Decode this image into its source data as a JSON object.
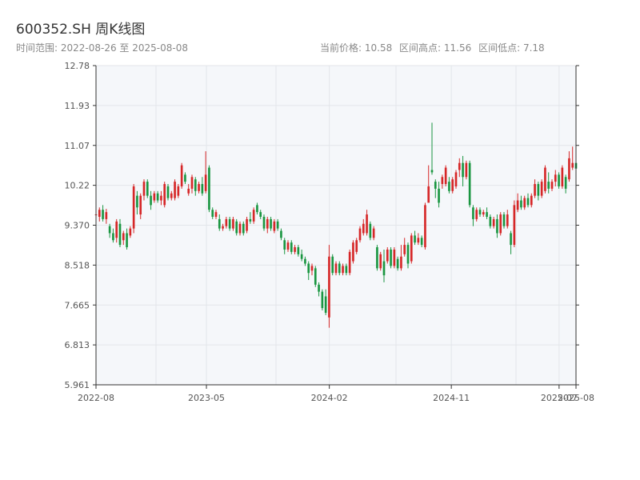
{
  "header": {
    "title": "600352.SH 周K线图",
    "range_label": "时间范围: 2022-08-26 至 2025-08-08",
    "current_price_label": "当前价格: 10.58",
    "high_label": "区间高点: 11.56",
    "low_label": "区间低点: 7.18"
  },
  "colors": {
    "up": "#d62728",
    "down": "#1a9641",
    "plot_bg": "#f5f7fa",
    "grid": "#e3e6ea",
    "axis": "#333333"
  },
  "chart_data": {
    "type": "candlestick",
    "y_ticks": [
      "12.78",
      "11.93",
      "11.07",
      "10.22",
      "9.370",
      "8.518",
      "7.665",
      "6.813",
      "5.961"
    ],
    "ylim": [
      5.961,
      12.78
    ],
    "x_ticks": [
      {
        "label": "2022-08",
        "date": "2022-08-26"
      },
      {
        "label": "2023-05",
        "date": "2023-05-01"
      },
      {
        "label": "2024-02",
        "date": "2024-02-01"
      },
      {
        "label": "2024-11",
        "date": "2024-11-01"
      },
      {
        "label": "2025-07",
        "date": "2025-07-01"
      },
      {
        "label": "2025-08",
        "date": "2025-08-08"
      }
    ],
    "xlim": [
      "2022-08-26",
      "2025-08-08"
    ],
    "candles": [
      {
        "o": 9.6,
        "h": 9.7,
        "l": 9.5,
        "c": 9.6
      },
      {
        "o": 9.55,
        "h": 9.75,
        "l": 9.45,
        "c": 9.7
      },
      {
        "o": 9.7,
        "h": 9.8,
        "l": 9.45,
        "c": 9.5
      },
      {
        "o": 9.5,
        "h": 9.72,
        "l": 9.4,
        "c": 9.65
      },
      {
        "o": 9.35,
        "h": 9.4,
        "l": 9.1,
        "c": 9.2
      },
      {
        "o": 9.2,
        "h": 9.3,
        "l": 9.0,
        "c": 9.05
      },
      {
        "o": 9.1,
        "h": 9.5,
        "l": 9.0,
        "c": 9.45
      },
      {
        "o": 9.4,
        "h": 9.5,
        "l": 8.9,
        "c": 8.95
      },
      {
        "o": 9.05,
        "h": 9.25,
        "l": 8.95,
        "c": 9.2
      },
      {
        "o": 9.2,
        "h": 9.3,
        "l": 8.85,
        "c": 8.9
      },
      {
        "o": 9.15,
        "h": 9.35,
        "l": 9.1,
        "c": 9.3
      },
      {
        "o": 9.3,
        "h": 10.25,
        "l": 9.2,
        "c": 10.2
      },
      {
        "o": 10.0,
        "h": 10.1,
        "l": 9.6,
        "c": 9.75
      },
      {
        "o": 9.6,
        "h": 10.05,
        "l": 9.5,
        "c": 10.0
      },
      {
        "o": 10.0,
        "h": 10.35,
        "l": 9.9,
        "c": 10.3
      },
      {
        "o": 10.3,
        "h": 10.35,
        "l": 9.95,
        "c": 10.0
      },
      {
        "o": 10.0,
        "h": 10.1,
        "l": 9.7,
        "c": 9.8
      },
      {
        "o": 9.9,
        "h": 10.1,
        "l": 9.85,
        "c": 10.05
      },
      {
        "o": 10.05,
        "h": 10.1,
        "l": 9.85,
        "c": 9.9
      },
      {
        "o": 9.9,
        "h": 10.1,
        "l": 9.8,
        "c": 10.0
      },
      {
        "o": 9.8,
        "h": 10.3,
        "l": 9.75,
        "c": 10.25
      },
      {
        "o": 10.2,
        "h": 10.25,
        "l": 9.9,
        "c": 9.95
      },
      {
        "o": 9.95,
        "h": 10.1,
        "l": 9.9,
        "c": 10.05
      },
      {
        "o": 9.95,
        "h": 10.35,
        "l": 9.9,
        "c": 10.3
      },
      {
        "o": 10.0,
        "h": 10.25,
        "l": 9.95,
        "c": 10.2
      },
      {
        "o": 10.2,
        "h": 10.7,
        "l": 10.15,
        "c": 10.65
      },
      {
        "o": 10.45,
        "h": 10.5,
        "l": 10.25,
        "c": 10.3
      },
      {
        "o": 10.05,
        "h": 10.25,
        "l": 10.0,
        "c": 10.15
      },
      {
        "o": 10.15,
        "h": 10.45,
        "l": 10.05,
        "c": 10.4
      },
      {
        "o": 10.35,
        "h": 10.4,
        "l": 10.0,
        "c": 10.1
      },
      {
        "o": 10.1,
        "h": 10.3,
        "l": 10.05,
        "c": 10.25
      },
      {
        "o": 10.25,
        "h": 10.4,
        "l": 10.0,
        "c": 10.05
      },
      {
        "o": 10.1,
        "h": 10.95,
        "l": 10.05,
        "c": 10.45
      },
      {
        "o": 10.6,
        "h": 10.65,
        "l": 9.65,
        "c": 9.7
      },
      {
        "o": 9.7,
        "h": 9.75,
        "l": 9.5,
        "c": 9.55
      },
      {
        "o": 9.55,
        "h": 9.7,
        "l": 9.5,
        "c": 9.65
      },
      {
        "o": 9.5,
        "h": 9.6,
        "l": 9.25,
        "c": 9.3
      },
      {
        "o": 9.3,
        "h": 9.4,
        "l": 9.25,
        "c": 9.35
      },
      {
        "o": 9.35,
        "h": 9.55,
        "l": 9.3,
        "c": 9.5
      },
      {
        "o": 9.5,
        "h": 9.55,
        "l": 9.25,
        "c": 9.3
      },
      {
        "o": 9.3,
        "h": 9.55,
        "l": 9.25,
        "c": 9.5
      },
      {
        "o": 9.45,
        "h": 9.5,
        "l": 9.15,
        "c": 9.2
      },
      {
        "o": 9.2,
        "h": 9.45,
        "l": 9.15,
        "c": 9.4
      },
      {
        "o": 9.4,
        "h": 9.45,
        "l": 9.15,
        "c": 9.2
      },
      {
        "o": 9.25,
        "h": 9.55,
        "l": 9.2,
        "c": 9.5
      },
      {
        "o": 9.5,
        "h": 9.65,
        "l": 9.4,
        "c": 9.45
      },
      {
        "o": 9.45,
        "h": 9.75,
        "l": 9.4,
        "c": 9.7
      },
      {
        "o": 9.8,
        "h": 9.85,
        "l": 9.6,
        "c": 9.65
      },
      {
        "o": 9.65,
        "h": 9.7,
        "l": 9.5,
        "c": 9.55
      },
      {
        "o": 9.55,
        "h": 9.6,
        "l": 9.25,
        "c": 9.3
      },
      {
        "o": 9.3,
        "h": 9.55,
        "l": 9.2,
        "c": 9.5
      },
      {
        "o": 9.5,
        "h": 9.55,
        "l": 9.25,
        "c": 9.3
      },
      {
        "o": 9.25,
        "h": 9.5,
        "l": 9.2,
        "c": 9.45
      },
      {
        "o": 9.45,
        "h": 9.5,
        "l": 9.25,
        "c": 9.3
      },
      {
        "o": 9.25,
        "h": 9.3,
        "l": 9.05,
        "c": 9.1
      },
      {
        "o": 9.05,
        "h": 9.1,
        "l": 8.75,
        "c": 8.85
      },
      {
        "o": 8.85,
        "h": 9.05,
        "l": 8.8,
        "c": 9.0
      },
      {
        "o": 9.0,
        "h": 9.05,
        "l": 8.75,
        "c": 8.8
      },
      {
        "o": 8.8,
        "h": 8.95,
        "l": 8.75,
        "c": 8.9
      },
      {
        "o": 8.9,
        "h": 8.95,
        "l": 8.7,
        "c": 8.75
      },
      {
        "o": 8.75,
        "h": 8.85,
        "l": 8.6,
        "c": 8.65
      },
      {
        "o": 8.65,
        "h": 8.7,
        "l": 8.5,
        "c": 8.55
      },
      {
        "o": 8.55,
        "h": 8.6,
        "l": 8.2,
        "c": 8.35
      },
      {
        "o": 8.4,
        "h": 8.55,
        "l": 8.3,
        "c": 8.5
      },
      {
        "o": 8.45,
        "h": 8.5,
        "l": 8.05,
        "c": 8.1
      },
      {
        "o": 8.1,
        "h": 8.15,
        "l": 7.85,
        "c": 7.95
      },
      {
        "o": 7.95,
        "h": 8.0,
        "l": 7.55,
        "c": 7.6
      },
      {
        "o": 7.85,
        "h": 8.0,
        "l": 7.45,
        "c": 7.5
      },
      {
        "o": 7.4,
        "h": 8.95,
        "l": 7.18,
        "c": 8.7
      },
      {
        "o": 8.7,
        "h": 8.75,
        "l": 8.3,
        "c": 8.35
      },
      {
        "o": 8.35,
        "h": 8.6,
        "l": 8.3,
        "c": 8.55
      },
      {
        "o": 8.55,
        "h": 8.6,
        "l": 8.3,
        "c": 8.35
      },
      {
        "o": 8.35,
        "h": 8.55,
        "l": 8.3,
        "c": 8.5
      },
      {
        "o": 8.5,
        "h": 8.55,
        "l": 8.3,
        "c": 8.35
      },
      {
        "o": 8.35,
        "h": 8.85,
        "l": 8.3,
        "c": 8.8
      },
      {
        "o": 8.6,
        "h": 9.05,
        "l": 8.55,
        "c": 9.0
      },
      {
        "o": 8.8,
        "h": 9.1,
        "l": 8.75,
        "c": 9.05
      },
      {
        "o": 9.05,
        "h": 9.35,
        "l": 9.0,
        "c": 9.3
      },
      {
        "o": 9.2,
        "h": 9.5,
        "l": 9.15,
        "c": 9.4
      },
      {
        "o": 9.2,
        "h": 9.7,
        "l": 9.15,
        "c": 9.6
      },
      {
        "o": 9.4,
        "h": 9.45,
        "l": 9.05,
        "c": 9.1
      },
      {
        "o": 9.1,
        "h": 9.35,
        "l": 9.05,
        "c": 9.3
      },
      {
        "o": 8.9,
        "h": 8.95,
        "l": 8.4,
        "c": 8.45
      },
      {
        "o": 8.45,
        "h": 8.8,
        "l": 8.4,
        "c": 8.75
      },
      {
        "o": 8.6,
        "h": 8.85,
        "l": 8.15,
        "c": 8.3
      },
      {
        "o": 8.6,
        "h": 8.9,
        "l": 8.55,
        "c": 8.85
      },
      {
        "o": 8.85,
        "h": 8.9,
        "l": 8.45,
        "c": 8.5
      },
      {
        "o": 8.5,
        "h": 8.9,
        "l": 8.45,
        "c": 8.85
      },
      {
        "o": 8.65,
        "h": 8.7,
        "l": 8.4,
        "c": 8.45
      },
      {
        "o": 8.45,
        "h": 8.95,
        "l": 8.4,
        "c": 8.7
      },
      {
        "o": 8.75,
        "h": 9.1,
        "l": 8.7,
        "c": 8.95
      },
      {
        "o": 8.95,
        "h": 9.0,
        "l": 8.45,
        "c": 8.55
      },
      {
        "o": 8.6,
        "h": 9.2,
        "l": 8.55,
        "c": 9.15
      },
      {
        "o": 9.15,
        "h": 9.25,
        "l": 8.95,
        "c": 9.0
      },
      {
        "o": 9.0,
        "h": 9.2,
        "l": 8.95,
        "c": 9.1
      },
      {
        "o": 9.1,
        "h": 9.15,
        "l": 8.9,
        "c": 8.95
      },
      {
        "o": 8.9,
        "h": 9.85,
        "l": 8.85,
        "c": 9.8
      },
      {
        "o": 9.85,
        "h": 10.65,
        "l": 9.9,
        "c": 10.2
      },
      {
        "o": 10.55,
        "h": 11.56,
        "l": 10.45,
        "c": 10.5
      },
      {
        "o": 10.3,
        "h": 10.35,
        "l": 9.95,
        "c": 10.15
      },
      {
        "o": 10.15,
        "h": 10.3,
        "l": 9.75,
        "c": 9.85
      },
      {
        "o": 10.25,
        "h": 10.45,
        "l": 10.15,
        "c": 10.4
      },
      {
        "o": 10.25,
        "h": 10.65,
        "l": 10.2,
        "c": 10.6
      },
      {
        "o": 10.3,
        "h": 10.4,
        "l": 10.05,
        "c": 10.1
      },
      {
        "o": 10.1,
        "h": 10.4,
        "l": 10.05,
        "c": 10.35
      },
      {
        "o": 10.2,
        "h": 10.55,
        "l": 10.15,
        "c": 10.5
      },
      {
        "o": 10.55,
        "h": 10.8,
        "l": 10.4,
        "c": 10.7
      },
      {
        "o": 10.7,
        "h": 10.85,
        "l": 10.2,
        "c": 10.4
      },
      {
        "o": 10.4,
        "h": 10.75,
        "l": 10.35,
        "c": 10.7
      },
      {
        "o": 10.7,
        "h": 10.75,
        "l": 9.75,
        "c": 9.8
      },
      {
        "o": 9.75,
        "h": 9.8,
        "l": 9.35,
        "c": 9.5
      },
      {
        "o": 9.5,
        "h": 9.75,
        "l": 9.45,
        "c": 9.7
      },
      {
        "o": 9.7,
        "h": 9.75,
        "l": 9.55,
        "c": 9.6
      },
      {
        "o": 9.6,
        "h": 9.7,
        "l": 9.55,
        "c": 9.65
      },
      {
        "o": 9.65,
        "h": 9.75,
        "l": 9.5,
        "c": 9.55
      },
      {
        "o": 9.55,
        "h": 9.6,
        "l": 9.3,
        "c": 9.35
      },
      {
        "o": 9.35,
        "h": 9.55,
        "l": 9.3,
        "c": 9.5
      },
      {
        "o": 9.5,
        "h": 9.6,
        "l": 9.1,
        "c": 9.2
      },
      {
        "o": 9.2,
        "h": 9.65,
        "l": 9.15,
        "c": 9.6
      },
      {
        "o": 9.6,
        "h": 9.65,
        "l": 9.3,
        "c": 9.35
      },
      {
        "o": 9.35,
        "h": 9.7,
        "l": 9.3,
        "c": 9.6
      },
      {
        "o": 9.2,
        "h": 9.25,
        "l": 8.75,
        "c": 8.95
      },
      {
        "o": 8.95,
        "h": 9.9,
        "l": 8.9,
        "c": 9.8
      },
      {
        "o": 9.7,
        "h": 10.05,
        "l": 9.65,
        "c": 9.9
      },
      {
        "o": 9.9,
        "h": 10.0,
        "l": 9.7,
        "c": 9.75
      },
      {
        "o": 9.75,
        "h": 10.0,
        "l": 9.7,
        "c": 9.95
      },
      {
        "o": 9.95,
        "h": 10.05,
        "l": 9.75,
        "c": 9.8
      },
      {
        "o": 9.8,
        "h": 10.05,
        "l": 9.75,
        "c": 10.0
      },
      {
        "o": 10.0,
        "h": 10.35,
        "l": 9.95,
        "c": 10.25
      },
      {
        "o": 10.25,
        "h": 10.3,
        "l": 9.9,
        "c": 10.0
      },
      {
        "o": 10.0,
        "h": 10.35,
        "l": 9.95,
        "c": 10.3
      },
      {
        "o": 10.1,
        "h": 10.65,
        "l": 10.05,
        "c": 10.6
      },
      {
        "o": 10.3,
        "h": 10.5,
        "l": 10.05,
        "c": 10.15
      },
      {
        "o": 10.15,
        "h": 10.35,
        "l": 10.1,
        "c": 10.3
      },
      {
        "o": 10.3,
        "h": 10.55,
        "l": 10.2,
        "c": 10.45
      },
      {
        "o": 10.45,
        "h": 10.5,
        "l": 10.15,
        "c": 10.2
      },
      {
        "o": 10.2,
        "h": 10.65,
        "l": 10.15,
        "c": 10.6
      },
      {
        "o": 10.4,
        "h": 10.45,
        "l": 10.05,
        "c": 10.15
      },
      {
        "o": 10.35,
        "h": 10.95,
        "l": 10.3,
        "c": 10.8
      },
      {
        "o": 10.6,
        "h": 11.05,
        "l": 10.55,
        "c": 10.7
      },
      {
        "o": 10.7,
        "h": 10.8,
        "l": 10.55,
        "c": 10.58
      }
    ]
  }
}
